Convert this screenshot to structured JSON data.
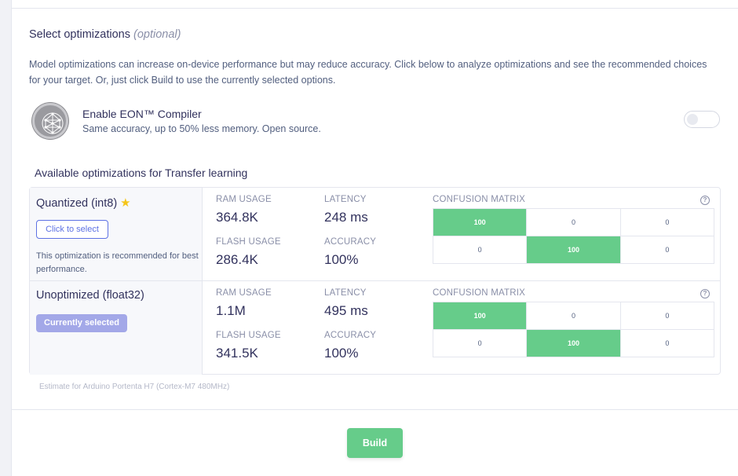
{
  "section": {
    "title": "Select optimizations",
    "title_optional": "(optional)",
    "description": "Model optimizations can increase on-device performance but may reduce accuracy. Click below to analyze optimizations and see the recommended choices for your target. Or, just click Build to use the currently selected options."
  },
  "eon": {
    "icon": "eon-compiler-icon",
    "title": "Enable EON™ Compiler",
    "subtitle": "Same accuracy, up to 50% less memory. Open source.",
    "enabled": false
  },
  "available_title": "Available optimizations for Transfer learning",
  "labels": {
    "ram": "RAM USAGE",
    "latency": "LATENCY",
    "flash": "FLASH USAGE",
    "accuracy": "ACCURACY",
    "confusion": "CONFUSION MATRIX",
    "help": "?"
  },
  "optimizations": [
    {
      "name": "Quantized (int8)",
      "star": "★",
      "button": "Click to select",
      "note": "This optimization is recommended for best performance.",
      "ram": "364.8K",
      "latency": "248 ms",
      "flash": "286.4K",
      "accuracy": "100%",
      "matrix": [
        [
          "100",
          "0",
          "0"
        ],
        [
          "0",
          "100",
          "0"
        ]
      ]
    },
    {
      "name": "Unoptimized (float32)",
      "button": "Currently selected",
      "ram": "1.1M",
      "latency": "495 ms",
      "flash": "341.5K",
      "accuracy": "100%",
      "matrix": [
        [
          "100",
          "0",
          "0"
        ],
        [
          "0",
          "100",
          "0"
        ]
      ]
    }
  ],
  "estimate": "Estimate for Arduino Portenta H7 (Cortex-M7 480MHz)",
  "build_label": "Build",
  "colors": {
    "accent": "#5e72e4",
    "success": "#66cc8a",
    "selected": "#a3a8e8"
  }
}
